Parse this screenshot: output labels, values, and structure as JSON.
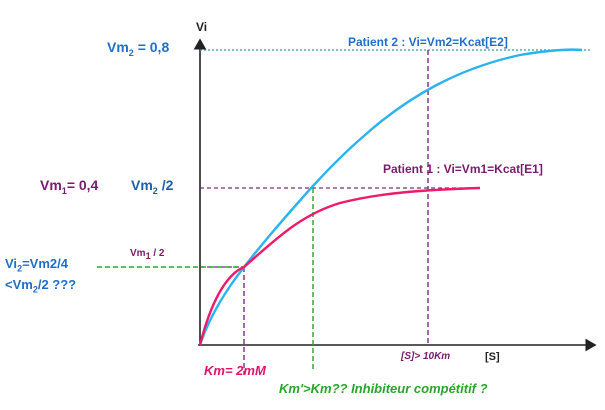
{
  "colors": {
    "blue": "#1f6fc9",
    "purple": "#7a1a6e",
    "pink": "#e3126a",
    "green": "#2aa52a",
    "curve_blue": "#2ab3ee",
    "curve_pink": "#ee1a6a"
  },
  "labels": {
    "y_axis": "Vi",
    "x_axis": "[S]",
    "vm2_main": "Vm",
    "vm2_sub": "2",
    "vm2_val": " = 0,8",
    "vm1_main": "Vm",
    "vm1_sub": "1",
    "vm1_val": "= 0,4",
    "vm2_half_main": "Vm",
    "vm2_half_sub": "2",
    "vm2_half_val": " /2",
    "vm1_half_main": "Vm",
    "vm1_half_sub": "1",
    "vm1_half_val": "  / 2",
    "vi2_line1_main": "Vi",
    "vi2_line1_sub": "2",
    "vi2_line1_val": "=Vm2/4",
    "vi2_line2_pre": "<Vm",
    "vi2_line2_sub": "2",
    "vi2_line2_val": "/2 ???",
    "patient2": "Patient 2 : Vi=Vm2=Kcat[E2]",
    "patient1": "Patient 1 : Vi=Vm1=Kcat[E1]",
    "s_gt": "[S]> 10Km",
    "km": "Km= 2mM",
    "km_prime": "Km'>Km??  Inhibiteur compétitif ?"
  },
  "chart_data": {
    "type": "line",
    "series": [
      {
        "name": "Patient 2",
        "max_rate": 0.8
      },
      {
        "name": "Patient 1",
        "max_rate": 0.4
      }
    ],
    "reference_values": {
      "Vm2": 0.8,
      "Vm1": 0.4,
      "Km": "2mM"
    }
  }
}
